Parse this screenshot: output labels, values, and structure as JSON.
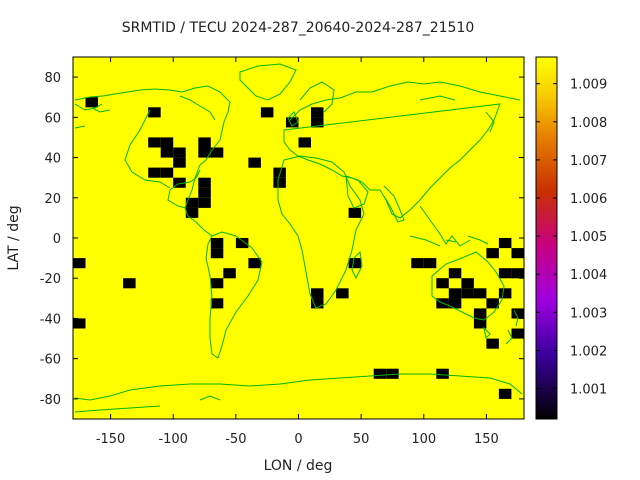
{
  "chart_data": {
    "type": "heatmap",
    "title": "SRMTID / TECU 2024-287_20640-2024-287_21510",
    "xlabel": "LON / deg",
    "ylabel": "LAT / deg",
    "xlim": [
      -180,
      180
    ],
    "ylim": [
      -90,
      90
    ],
    "x_ticks": [
      -150,
      -100,
      -50,
      0,
      50,
      100,
      150
    ],
    "y_ticks": [
      80,
      60,
      40,
      20,
      0,
      -20,
      -40,
      -60,
      -80
    ],
    "cell_size_deg": {
      "lon": 10,
      "lat": 5
    },
    "background_value": 1.0097,
    "colorbar": {
      "ticks": [
        1.009,
        1.008,
        1.007,
        1.006,
        1.005,
        1.004,
        1.003,
        1.002,
        1.001
      ],
      "range": [
        1.0002,
        1.0097
      ]
    },
    "colors": {
      "plot_background": "#ffff00",
      "low_cell": "#000000",
      "coastline": "#00b400",
      "frame": "#000000"
    },
    "low_value_cells": [
      {
        "lon": -175,
        "lat": -12.5,
        "value": 1.0002
      },
      {
        "lon": -175,
        "lat": -42.5,
        "value": 1.0002
      },
      {
        "lon": -165,
        "lat": 67.5,
        "value": 1.0002
      },
      {
        "lon": -135,
        "lat": -22.5,
        "value": 1.0002
      },
      {
        "lon": -115,
        "lat": 62.5,
        "value": 1.0002
      },
      {
        "lon": -115,
        "lat": 47.5,
        "value": 1.0002
      },
      {
        "lon": -115,
        "lat": 32.5,
        "value": 1.0002
      },
      {
        "lon": -105,
        "lat": 47.5,
        "value": 1.0002
      },
      {
        "lon": -105,
        "lat": 42.5,
        "value": 1.0002
      },
      {
        "lon": -105,
        "lat": 32.5,
        "value": 1.0002
      },
      {
        "lon": -95,
        "lat": 42.5,
        "value": 1.0002
      },
      {
        "lon": -95,
        "lat": 37.5,
        "value": 1.0002
      },
      {
        "lon": -95,
        "lat": 27.5,
        "value": 1.0002
      },
      {
        "lon": -85,
        "lat": 17.5,
        "value": 1.0002
      },
      {
        "lon": -85,
        "lat": 12.5,
        "value": 1.0002
      },
      {
        "lon": -75,
        "lat": 47.5,
        "value": 1.0002
      },
      {
        "lon": -75,
        "lat": 42.5,
        "value": 1.0002
      },
      {
        "lon": -75,
        "lat": 27.5,
        "value": 1.0002
      },
      {
        "lon": -75,
        "lat": 22.5,
        "value": 1.0002
      },
      {
        "lon": -75,
        "lat": 17.5,
        "value": 1.0002
      },
      {
        "lon": -65,
        "lat": 42.5,
        "value": 1.0002
      },
      {
        "lon": -65,
        "lat": -2.5,
        "value": 1.0002
      },
      {
        "lon": -65,
        "lat": -7.5,
        "value": 1.0002
      },
      {
        "lon": -65,
        "lat": -22.5,
        "value": 1.0002
      },
      {
        "lon": -65,
        "lat": -32.5,
        "value": 1.0002
      },
      {
        "lon": -55,
        "lat": -17.5,
        "value": 1.0002
      },
      {
        "lon": -45,
        "lat": -2.5,
        "value": 1.0002
      },
      {
        "lon": -35,
        "lat": 37.5,
        "value": 1.0002
      },
      {
        "lon": -35,
        "lat": -12.5,
        "value": 1.0002
      },
      {
        "lon": -25,
        "lat": 62.5,
        "value": 1.0002
      },
      {
        "lon": -15,
        "lat": 32.5,
        "value": 1.0002
      },
      {
        "lon": -15,
        "lat": 27.5,
        "value": 1.0002
      },
      {
        "lon": -5,
        "lat": 57.5,
        "value": 1.0002
      },
      {
        "lon": 5,
        "lat": 47.5,
        "value": 1.0002
      },
      {
        "lon": 15,
        "lat": 62.5,
        "value": 1.0002
      },
      {
        "lon": 15,
        "lat": 57.5,
        "value": 1.0002
      },
      {
        "lon": 15,
        "lat": -27.5,
        "value": 1.0002
      },
      {
        "lon": 15,
        "lat": -32.5,
        "value": 1.0002
      },
      {
        "lon": 35,
        "lat": -27.5,
        "value": 1.0002
      },
      {
        "lon": 45,
        "lat": 12.5,
        "value": 1.0002
      },
      {
        "lon": 45,
        "lat": -12.5,
        "value": 1.0002
      },
      {
        "lon": 65,
        "lat": -67.5,
        "value": 1.0002
      },
      {
        "lon": 75,
        "lat": -67.5,
        "value": 1.0002
      },
      {
        "lon": 95,
        "lat": -12.5,
        "value": 1.0002
      },
      {
        "lon": 105,
        "lat": -12.5,
        "value": 1.0002
      },
      {
        "lon": 115,
        "lat": -22.5,
        "value": 1.0002
      },
      {
        "lon": 115,
        "lat": -32.5,
        "value": 1.0002
      },
      {
        "lon": 115,
        "lat": -67.5,
        "value": 1.0002
      },
      {
        "lon": 125,
        "lat": -17.5,
        "value": 1.0002
      },
      {
        "lon": 125,
        "lat": -27.5,
        "value": 1.0002
      },
      {
        "lon": 125,
        "lat": -32.5,
        "value": 1.0002
      },
      {
        "lon": 135,
        "lat": -22.5,
        "value": 1.0002
      },
      {
        "lon": 135,
        "lat": -27.5,
        "value": 1.0002
      },
      {
        "lon": 145,
        "lat": -27.5,
        "value": 1.0002
      },
      {
        "lon": 145,
        "lat": -37.5,
        "value": 1.0002
      },
      {
        "lon": 145,
        "lat": -42.5,
        "value": 1.0002
      },
      {
        "lon": 155,
        "lat": -7.5,
        "value": 1.0002
      },
      {
        "lon": 155,
        "lat": -32.5,
        "value": 1.0002
      },
      {
        "lon": 155,
        "lat": -52.5,
        "value": 1.0002
      },
      {
        "lon": 165,
        "lat": -2.5,
        "value": 1.0002
      },
      {
        "lon": 165,
        "lat": -17.5,
        "value": 1.0002
      },
      {
        "lon": 165,
        "lat": -27.5,
        "value": 1.0002
      },
      {
        "lon": 165,
        "lat": -77.5,
        "value": 1.0002
      },
      {
        "lon": 175,
        "lat": -7.5,
        "value": 1.0002
      },
      {
        "lon": 175,
        "lat": -17.5,
        "value": 1.0002
      },
      {
        "lon": 175,
        "lat": -37.5,
        "value": 1.0002
      },
      {
        "lon": 175,
        "lat": -47.5,
        "value": 1.0002
      }
    ]
  }
}
